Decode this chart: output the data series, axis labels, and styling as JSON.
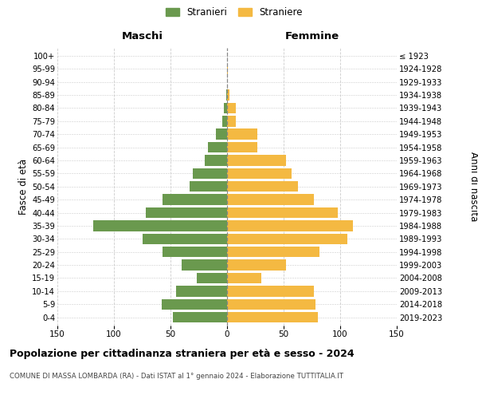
{
  "age_groups": [
    "0-4",
    "5-9",
    "10-14",
    "15-19",
    "20-24",
    "25-29",
    "30-34",
    "35-39",
    "40-44",
    "45-49",
    "50-54",
    "55-59",
    "60-64",
    "65-69",
    "70-74",
    "75-79",
    "80-84",
    "85-89",
    "90-94",
    "95-99",
    "100+"
  ],
  "birth_years": [
    "2019-2023",
    "2014-2018",
    "2009-2013",
    "2004-2008",
    "1999-2003",
    "1994-1998",
    "1989-1993",
    "1984-1988",
    "1979-1983",
    "1974-1978",
    "1969-1973",
    "1964-1968",
    "1959-1963",
    "1954-1958",
    "1949-1953",
    "1944-1948",
    "1939-1943",
    "1934-1938",
    "1929-1933",
    "1924-1928",
    "≤ 1923"
  ],
  "maschi": [
    48,
    58,
    45,
    27,
    40,
    57,
    75,
    118,
    72,
    57,
    33,
    30,
    20,
    17,
    10,
    4,
    3,
    1,
    0,
    0,
    0
  ],
  "femmine": [
    80,
    78,
    77,
    30,
    52,
    82,
    106,
    111,
    98,
    77,
    63,
    57,
    52,
    27,
    27,
    8,
    8,
    2,
    0,
    1,
    0
  ],
  "xlim": 150,
  "male_color": "#6a994e",
  "female_color": "#f4b942",
  "bar_height": 0.82,
  "title": "Popolazione per cittadinanza straniera per età e sesso - 2024",
  "subtitle": "COMUNE DI MASSA LOMBARDA (RA) - Dati ISTAT al 1° gennaio 2024 - Elaborazione TUTTITALIA.IT",
  "legend_male": "Stranieri",
  "legend_female": "Straniere",
  "ylabel_left": "Fasce di età",
  "ylabel_right": "Anni di nascita",
  "header_left": "Maschi",
  "header_right": "Femmine",
  "bg_color": "#ffffff",
  "grid_color": "#cccccc",
  "center_line_color": "#888888"
}
